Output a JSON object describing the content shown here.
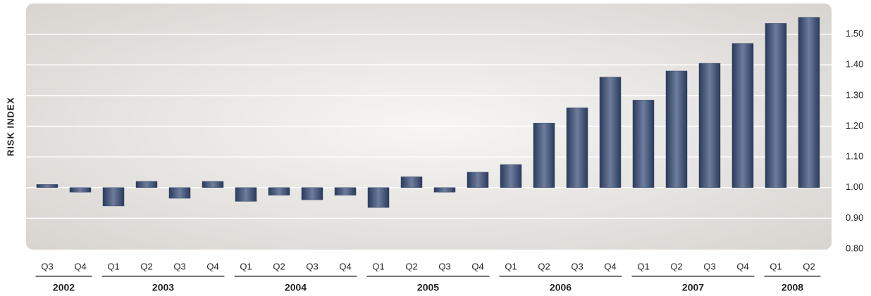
{
  "chart_data": {
    "type": "bar",
    "y_label": "RISK INDEX",
    "groups": [
      {
        "name": "2002",
        "categories": [
          "Q3",
          "Q4"
        ]
      },
      {
        "name": "2003",
        "categories": [
          "Q1",
          "Q2",
          "Q3",
          "Q4"
        ]
      },
      {
        "name": "2004",
        "categories": [
          "Q1",
          "Q2",
          "Q3",
          "Q4"
        ]
      },
      {
        "name": "2005",
        "categories": [
          "Q1",
          "Q2",
          "Q3",
          "Q4"
        ]
      },
      {
        "name": "2006",
        "categories": [
          "Q1",
          "Q2",
          "Q3",
          "Q4"
        ]
      },
      {
        "name": "2007",
        "categories": [
          "Q1",
          "Q2",
          "Q3",
          "Q4"
        ]
      },
      {
        "name": "2008",
        "categories": [
          "Q1",
          "Q2"
        ]
      }
    ],
    "values": [
      1.01,
      0.985,
      0.94,
      1.02,
      0.965,
      1.02,
      0.955,
      0.975,
      0.96,
      0.975,
      0.935,
      1.035,
      0.985,
      1.05,
      1.075,
      1.21,
      1.26,
      1.36,
      1.285,
      1.38,
      1.405,
      1.47,
      1.535,
      1.555
    ],
    "bar_base": 1,
    "color": "#34466b",
    "ylim": [
      0.8,
      1.6
    ],
    "yticks": [
      {
        "value": 0.8,
        "label": "0.80"
      },
      {
        "value": 0.9,
        "label": "0.90"
      },
      {
        "value": 1.0,
        "label": "1.00"
      },
      {
        "value": 1.1,
        "label": "1.10"
      },
      {
        "value": 1.2,
        "label": "1.20"
      },
      {
        "value": 1.3,
        "label": "1.30"
      },
      {
        "value": 1.4,
        "label": "1.40"
      },
      {
        "value": 1.5,
        "label": "1.50"
      }
    ],
    "y_axis_side": "right",
    "grid": true
  }
}
